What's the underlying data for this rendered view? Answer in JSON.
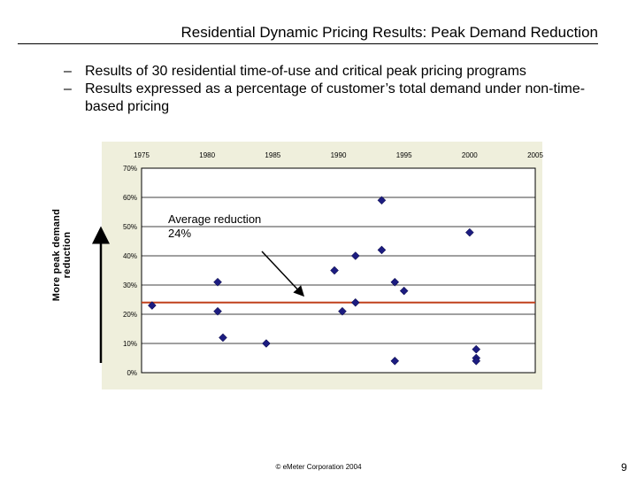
{
  "slide": {
    "title": "Residential Dynamic Pricing Results: Peak Demand Reduction",
    "bullets": [
      "Results of 30 residential time-of-use and critical peak pricing programs",
      "Results expressed as a percentage of customer’s total demand under non-time-based pricing"
    ],
    "bullet_dash": "–",
    "footer": "© eMeter Corporation 2004",
    "page_number": "9"
  },
  "chart_data": {
    "type": "scatter",
    "ylabel": "More peak demand reduction",
    "xlim": [
      1975,
      2005
    ],
    "ylim": [
      0,
      70
    ],
    "x_ticks": [
      "1975",
      "1980",
      "1985",
      "1990",
      "1995",
      "2000",
      "2005"
    ],
    "y_ticks": [
      "0%",
      "10%",
      "20%",
      "30%",
      "40%",
      "50%",
      "60%",
      "70%"
    ],
    "points": [
      {
        "x": 1975.8,
        "y": 23
      },
      {
        "x": 1980.8,
        "y": 31
      },
      {
        "x": 1980.8,
        "y": 21
      },
      {
        "x": 1984.5,
        "y": 10
      },
      {
        "x": 1981.2,
        "y": 12
      },
      {
        "x": 1989.7,
        "y": 35
      },
      {
        "x": 1990.3,
        "y": 21
      },
      {
        "x": 1991.3,
        "y": 24
      },
      {
        "x": 1991.3,
        "y": 40
      },
      {
        "x": 1993.3,
        "y": 59
      },
      {
        "x": 1993.3,
        "y": 42
      },
      {
        "x": 1994.3,
        "y": 31
      },
      {
        "x": 1995.0,
        "y": 28
      },
      {
        "x": 1994.3,
        "y": 4
      },
      {
        "x": 2000.0,
        "y": 48
      },
      {
        "x": 2000.5,
        "y": 8
      },
      {
        "x": 2000.5,
        "y": 5
      },
      {
        "x": 2000.5,
        "y": 4
      }
    ],
    "average_line": {
      "value": 24,
      "label": "Average reduction 24%",
      "color": "#c0401c"
    },
    "marker_color": "#1c1c80",
    "grid": true,
    "background_color": "#efefdc"
  }
}
